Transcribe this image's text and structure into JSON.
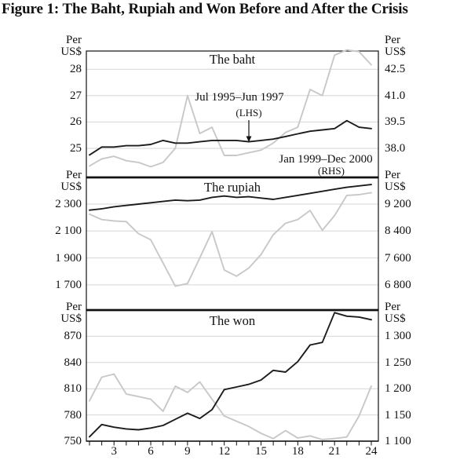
{
  "title": "Figure 1: The Baht, Rupiah and Won Before and After the Crisis",
  "colors": {
    "series_dark": "#1c1c1c",
    "series_light": "#c6c8ca",
    "gridline": "#d4d6d8",
    "border": "#111111"
  },
  "x_axis": {
    "unit": "month",
    "range": [
      1,
      24
    ],
    "tick_labels": [
      {
        "v": 3,
        "t": "3"
      },
      {
        "v": 6,
        "t": "6"
      },
      {
        "v": 9,
        "t": "9"
      },
      {
        "v": 12,
        "t": "12"
      },
      {
        "v": 15,
        "t": "15"
      },
      {
        "v": 18,
        "t": "18"
      },
      {
        "v": 21,
        "t": "21"
      },
      {
        "v": 24,
        "t": "24"
      }
    ]
  },
  "chart_data": [
    {
      "type": "line",
      "title": "The baht",
      "left_axis": {
        "header": "Per US$",
        "ticks": [
          {
            "v": 28,
            "t": "28"
          },
          {
            "v": 27,
            "t": "27"
          },
          {
            "v": 26,
            "t": "26"
          },
          {
            "v": 25,
            "t": "25"
          }
        ],
        "range": [
          23.9,
          28.7
        ]
      },
      "right_axis": {
        "header": "Per US$",
        "ticks": [
          {
            "v": 42.5,
            "t": "42.5"
          },
          {
            "v": 41,
            "t": "41.0"
          },
          {
            "v": 39.5,
            "t": "39.5"
          },
          {
            "v": 38,
            "t": "38.0"
          }
        ],
        "range": [
          36.4,
          43.6
        ]
      },
      "x": [
        1,
        2,
        3,
        4,
        5,
        6,
        7,
        8,
        9,
        10,
        11,
        12,
        13,
        14,
        15,
        16,
        17,
        18,
        19,
        20,
        21,
        22,
        23,
        24
      ],
      "series": [
        {
          "name": "Jul 1995–Jun 1997 (LHS)",
          "axis": "left",
          "color": "series_dark",
          "values": [
            24.75,
            25.05,
            25.05,
            25.1,
            25.1,
            25.15,
            25.3,
            25.2,
            25.2,
            25.25,
            25.3,
            25.3,
            25.3,
            25.25,
            25.3,
            25.35,
            25.45,
            25.55,
            25.65,
            25.7,
            25.75,
            26.05,
            25.8,
            25.75
          ]
        },
        {
          "name": "Jan 1999–Dec 2000 (RHS)",
          "axis": "right",
          "color": "series_light",
          "values": [
            37.0,
            37.4,
            37.55,
            37.3,
            37.2,
            36.95,
            37.2,
            38.0,
            41.0,
            38.85,
            39.2,
            37.6,
            37.6,
            37.75,
            37.9,
            38.3,
            38.9,
            39.2,
            41.35,
            41.0,
            43.3,
            43.6,
            43.5,
            42.75
          ]
        }
      ],
      "annotations": [
        {
          "text": "Jul 1995–Jun 1997",
          "sub": "(LHS)"
        },
        {
          "text": "Jan 1999–Dec 2000",
          "sub": "(RHS)"
        }
      ]
    },
    {
      "type": "line",
      "title": "The rupiah",
      "left_axis": {
        "header": "Per US$",
        "ticks": [
          {
            "v": 2300,
            "t": "2 300"
          },
          {
            "v": 2100,
            "t": "2 100"
          },
          {
            "v": 1900,
            "t": "1 900"
          },
          {
            "v": 1700,
            "t": "1 700"
          }
        ],
        "range": [
          1510,
          2500
        ]
      },
      "right_axis": {
        "header": "Per US$",
        "ticks": [
          {
            "v": 9200,
            "t": "9 200"
          },
          {
            "v": 8400,
            "t": "8 400"
          },
          {
            "v": 7600,
            "t": "7 600"
          },
          {
            "v": 6800,
            "t": "6 800"
          }
        ],
        "range": [
          6040,
          10000
        ]
      },
      "x": [
        1,
        2,
        3,
        4,
        5,
        6,
        7,
        8,
        9,
        10,
        11,
        12,
        13,
        14,
        15,
        16,
        17,
        18,
        19,
        20,
        21,
        22,
        23,
        24
      ],
      "series": [
        {
          "name": "Jul 1995–Jun 1997 (LHS)",
          "axis": "left",
          "color": "series_dark",
          "values": [
            2255,
            2265,
            2280,
            2290,
            2300,
            2310,
            2320,
            2330,
            2325,
            2330,
            2350,
            2360,
            2350,
            2355,
            2345,
            2335,
            2350,
            2365,
            2380,
            2395,
            2410,
            2425,
            2435,
            2445
          ]
        },
        {
          "name": "Jan 1999–Dec 2000 (RHS)",
          "axis": "right",
          "color": "series_light",
          "values": [
            8900,
            8740,
            8700,
            8680,
            8320,
            8140,
            7450,
            6760,
            6840,
            7600,
            8380,
            7240,
            7060,
            7300,
            7700,
            8290,
            8630,
            8740,
            9010,
            8420,
            8860,
            9460,
            9480,
            9540
          ]
        }
      ],
      "annotations": []
    },
    {
      "type": "line",
      "title": "The won",
      "left_axis": {
        "header": "Per US$",
        "ticks": [
          {
            "v": 870,
            "t": "870"
          },
          {
            "v": 840,
            "t": "840"
          },
          {
            "v": 810,
            "t": "810"
          },
          {
            "v": 780,
            "t": "780"
          },
          {
            "v": 750,
            "t": "750"
          }
        ],
        "range": [
          750,
          900
        ]
      },
      "right_axis": {
        "header": "Per US$",
        "ticks": [
          {
            "v": 1300,
            "t": "1 300"
          },
          {
            "v": 1250,
            "t": "1 250"
          },
          {
            "v": 1200,
            "t": "1 200"
          },
          {
            "v": 1150,
            "t": "1 150"
          },
          {
            "v": 1100,
            "t": "1 100"
          }
        ],
        "range": [
          1100,
          1350
        ]
      },
      "x": [
        1,
        2,
        3,
        4,
        5,
        6,
        7,
        8,
        9,
        10,
        11,
        12,
        13,
        14,
        15,
        16,
        17,
        18,
        19,
        20,
        21,
        22,
        23,
        24
      ],
      "series": [
        {
          "name": "Jul 1995–Jun 1997 (LHS)",
          "axis": "left",
          "color": "series_dark",
          "values": [
            755,
            769,
            766,
            764,
            763,
            765,
            768,
            775,
            782,
            776,
            786,
            809,
            812,
            815,
            820,
            831,
            829,
            841,
            860,
            863,
            897,
            893,
            892,
            889
          ]
        },
        {
          "name": "Jan 1999–Dec 2000 (RHS)",
          "axis": "right",
          "color": "series_light",
          "values": [
            1177,
            1222,
            1228,
            1190,
            1185,
            1180,
            1157,
            1205,
            1193,
            1213,
            1180,
            1148,
            1138,
            1128,
            1115,
            1105,
            1120,
            1106,
            1110,
            1103,
            1105,
            1108,
            1148,
            1205
          ]
        }
      ],
      "annotations": []
    }
  ]
}
